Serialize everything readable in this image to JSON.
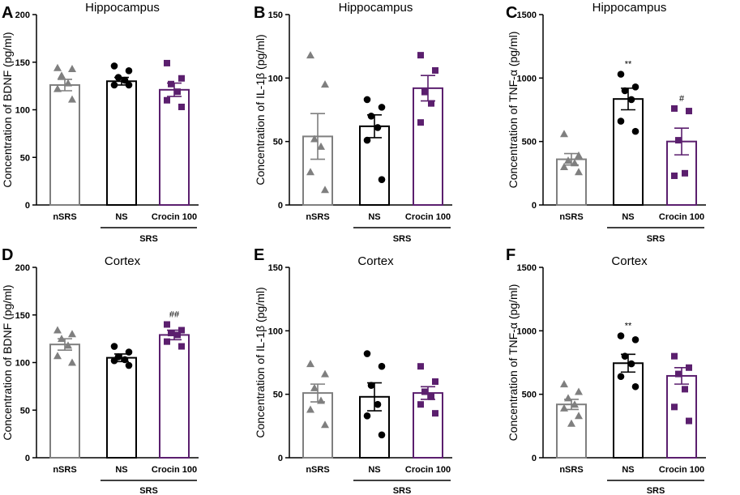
{
  "figure": {
    "group_label": "SRS",
    "colors": {
      "nSRS": "#7f7f7f",
      "NS": "#000000",
      "Crocin 100": "#5b1f6e"
    },
    "markers": {
      "nSRS": "triangle",
      "NS": "circle",
      "Crocin 100": "square"
    }
  },
  "chart_data": [
    {
      "panel": "A",
      "type": "bar",
      "title": "Hippocampus",
      "ylabel": "Concentration of BDNF (pg/ml)",
      "ylim": [
        0,
        200
      ],
      "yticks": [
        0,
        50,
        100,
        150,
        200
      ],
      "categories": [
        "nSRS",
        "NS",
        "Crocin 100"
      ],
      "means": [
        126,
        130,
        121
      ],
      "sem": [
        6,
        4,
        7
      ],
      "points": [
        [
          144,
          143,
          136,
          128,
          122,
          111
        ],
        [
          146,
          141,
          134,
          131,
          126,
          126
        ],
        [
          149,
          133,
          127,
          119,
          110,
          103
        ]
      ],
      "significance": [
        "",
        "",
        ""
      ]
    },
    {
      "panel": "B",
      "type": "bar",
      "title": "Hippocampus",
      "ylabel": "Concentration of IL-1β (pg/ml)",
      "ylim": [
        0,
        150
      ],
      "yticks": [
        0,
        50,
        100,
        150
      ],
      "categories": [
        "nSRS",
        "NS",
        "Crocin 100"
      ],
      "means": [
        54,
        62,
        92
      ],
      "sem": [
        18,
        9,
        10
      ],
      "points": [
        [
          118,
          95,
          52,
          46,
          26,
          12
        ],
        [
          83,
          77,
          70,
          61,
          51,
          20
        ],
        [
          118,
          106,
          89,
          80,
          65
        ]
      ],
      "significance": [
        "",
        "",
        ""
      ]
    },
    {
      "panel": "C",
      "type": "bar",
      "title": "Hippocampus",
      "ylabel": "Concentration of TNF-α (pg/ml)",
      "ylim": [
        0,
        1500
      ],
      "yticks": [
        0,
        500,
        1000,
        1500
      ],
      "categories": [
        "nSRS",
        "NS",
        "Crocin 100"
      ],
      "means": [
        360,
        835,
        500
      ],
      "sem": [
        45,
        85,
        105
      ],
      "points": [
        [
          560,
          390,
          350,
          330,
          300,
          260
        ],
        [
          1030,
          930,
          900,
          830,
          660,
          580
        ],
        [
          760,
          740,
          510,
          250,
          230
        ]
      ],
      "significance": [
        "",
        "**",
        "#"
      ]
    },
    {
      "panel": "D",
      "type": "bar",
      "title": "Cortex",
      "ylabel": "Concentration of BDNF (pg/ml)",
      "ylim": [
        0,
        200
      ],
      "yticks": [
        0,
        50,
        100,
        150,
        200
      ],
      "categories": [
        "nSRS",
        "NS",
        "Crocin 100"
      ],
      "means": [
        119,
        105,
        129
      ],
      "sem": [
        6,
        4,
        5
      ],
      "points": [
        [
          134,
          130,
          125,
          118,
          107,
          100
        ],
        [
          117,
          111,
          106,
          103,
          102,
          97
        ],
        [
          140,
          134,
          131,
          129,
          122,
          117
        ]
      ],
      "significance": [
        "",
        "",
        "##"
      ]
    },
    {
      "panel": "E",
      "type": "bar",
      "title": "Cortex",
      "ylabel": "Concentration of IL-1β (pg/ml)",
      "ylim": [
        0,
        150
      ],
      "yticks": [
        0,
        50,
        100,
        150
      ],
      "categories": [
        "nSRS",
        "NS",
        "Crocin 100"
      ],
      "means": [
        51,
        48,
        51
      ],
      "sem": [
        7,
        11,
        5
      ],
      "points": [
        [
          74,
          66,
          55,
          45,
          38,
          26
        ],
        [
          82,
          72,
          57,
          42,
          33,
          18
        ],
        [
          72,
          60,
          52,
          48,
          42,
          35
        ]
      ],
      "significance": [
        "",
        "",
        ""
      ]
    },
    {
      "panel": "F",
      "type": "bar",
      "title": "Cortex",
      "ylabel": "Concentration of TNF-α (pg/ml)",
      "ylim": [
        0,
        1500
      ],
      "yticks": [
        0,
        500,
        1000,
        1500
      ],
      "categories": [
        "nSRS",
        "NS",
        "Crocin 100"
      ],
      "means": [
        420,
        745,
        645
      ],
      "sem": [
        40,
        70,
        65
      ],
      "points": [
        [
          580,
          520,
          470,
          420,
          390,
          330,
          270
        ],
        [
          960,
          930,
          800,
          740,
          640,
          560
        ],
        [
          800,
          710,
          660,
          540,
          400,
          290
        ]
      ],
      "significance": [
        "",
        "**",
        ""
      ]
    }
  ]
}
